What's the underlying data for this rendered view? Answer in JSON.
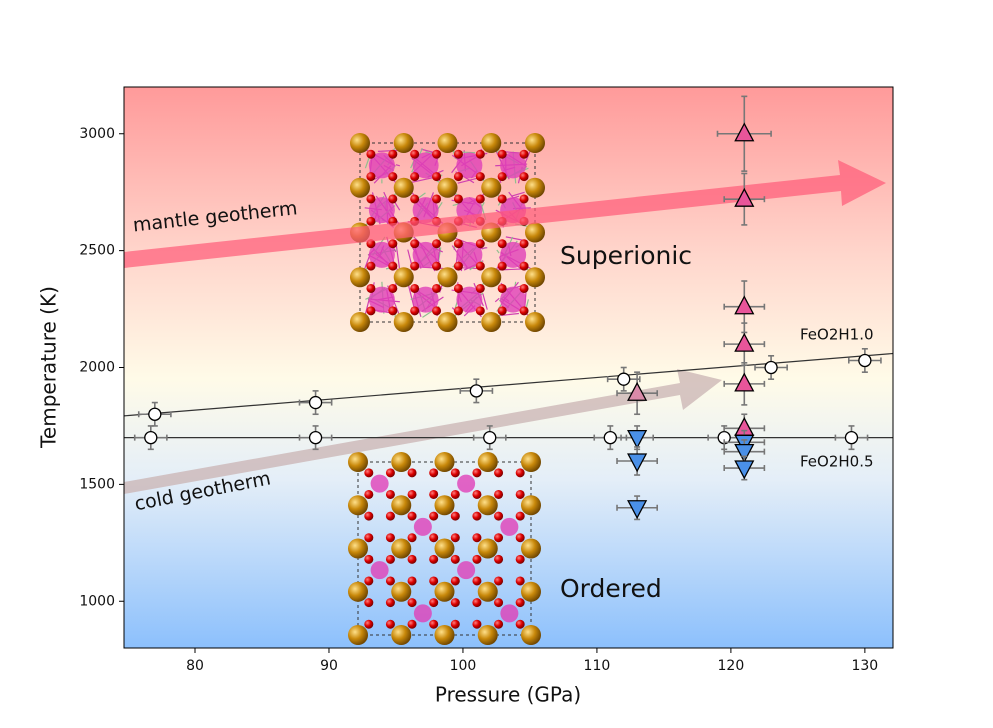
{
  "chart_data": {
    "type": "scatter",
    "xlabel": "Pressure (GPa)",
    "ylabel": "Temperature (K)",
    "xlim": [
      74.7,
      132.1
    ],
    "ylim": [
      800,
      3200
    ],
    "xticks": [
      80,
      90,
      100,
      110,
      120,
      130
    ],
    "yticks": [
      1000,
      1500,
      2000,
      2500,
      3000
    ],
    "series": [
      {
        "name": "FeO2H1.0",
        "marker": "circle",
        "color": "#ffffff",
        "x": [
          77,
          89,
          101,
          112,
          123,
          130
        ],
        "values": [
          1800,
          1850,
          1900,
          1950,
          2000,
          2030
        ],
        "xerr": [
          1.2,
          1.2,
          1.2,
          1.2,
          1.2,
          1.2
        ],
        "yerr": [
          50,
          50,
          50,
          50,
          50,
          50
        ],
        "fit": {
          "x": [
            74.7,
            132.1
          ],
          "values": [
            1793,
            2060
          ]
        }
      },
      {
        "name": "FeO2H0.5",
        "marker": "circle",
        "color": "#ffffff",
        "x": [
          76.7,
          89,
          102,
          111,
          119.5,
          129
        ],
        "values": [
          1700,
          1700,
          1700,
          1700,
          1700,
          1700
        ],
        "xerr": [
          1.2,
          1.2,
          1.2,
          1.2,
          1.2,
          1.2
        ],
        "yerr": [
          50,
          50,
          50,
          50,
          50,
          50
        ],
        "fit": {
          "x": [
            74.7,
            132.1
          ],
          "values": [
            1700,
            1700
          ]
        }
      },
      {
        "marker": "triangle-up",
        "colors": [
          "#e8559a",
          "#e8559a",
          "#e8559a",
          "#e8559a",
          "#e8559a",
          "#e8559a",
          "#d98aa8"
        ],
        "x": [
          121,
          121,
          121,
          121,
          121,
          121,
          113
        ],
        "values": [
          3000,
          2720,
          2260,
          2100,
          1930,
          1740,
          1890
        ],
        "xerr": [
          2,
          1.5,
          1.5,
          1.5,
          1.5,
          1.5,
          1.5
        ],
        "yerr": [
          160,
          110,
          110,
          90,
          90,
          60,
          90
        ]
      },
      {
        "marker": "triangle-down",
        "color": "#4a90e8",
        "x": [
          113,
          113,
          113,
          121,
          121,
          121
        ],
        "values": [
          1700,
          1600,
          1400,
          1680,
          1640,
          1570
        ],
        "xerr": [
          1.2,
          1.5,
          1.5,
          1.5,
          1.5,
          1.5
        ],
        "yerr": [
          50,
          60,
          50,
          50,
          50,
          50
        ]
      }
    ],
    "annotations": [
      "mantle geotherm",
      "cold geotherm",
      "Superionic",
      "Ordered"
    ]
  }
}
